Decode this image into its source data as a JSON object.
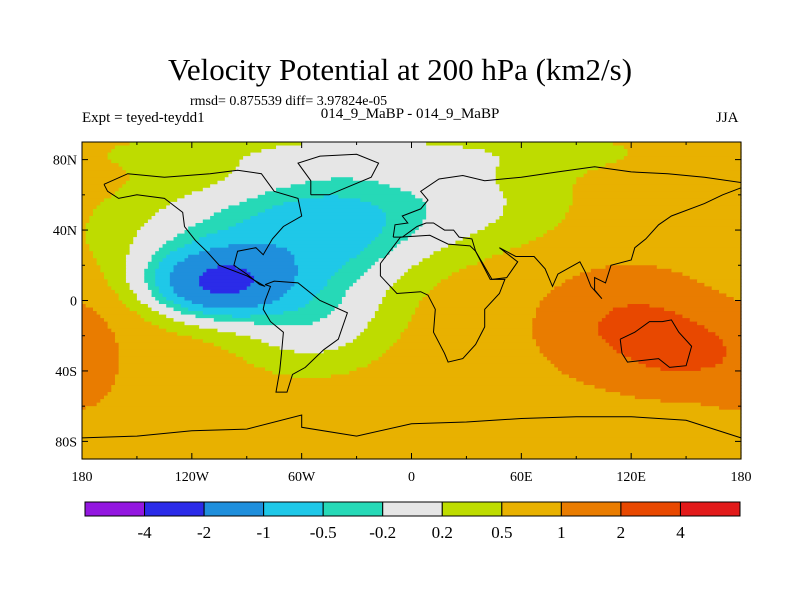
{
  "chart_data": {
    "type": "heatmap",
    "title": "Velocity Potential at 200 hPa (km2/s)",
    "stats_text": "rmsd= 0.875539 diff= 3.97824e-05",
    "left_label": "Expt = teyed-teydd1",
    "center_label": "014_9_MaBP - 014_9_MaBP",
    "right_label": "JJA",
    "xlabel": "",
    "ylabel": "",
    "xlim": [
      -180,
      180
    ],
    "ylim": [
      -90,
      90
    ],
    "x_ticks": [
      {
        "value": -180,
        "label": "180"
      },
      {
        "value": -120,
        "label": "120W"
      },
      {
        "value": -60,
        "label": "60W"
      },
      {
        "value": 0,
        "label": "0"
      },
      {
        "value": 60,
        "label": "60E"
      },
      {
        "value": 120,
        "label": "120E"
      },
      {
        "value": 180,
        "label": "180"
      }
    ],
    "y_ticks": [
      {
        "value": 80,
        "label": "80N"
      },
      {
        "value": 40,
        "label": "40N"
      },
      {
        "value": 0,
        "label": "0"
      },
      {
        "value": -40,
        "label": "40S"
      },
      {
        "value": -80,
        "label": "80S"
      }
    ],
    "colorbar": {
      "levels": [
        "-4",
        "-2",
        "-1",
        "-0.5",
        "-0.2",
        "0.2",
        "0.5",
        "1",
        "2",
        "4"
      ],
      "colors": [
        "#9317e0",
        "#2b2be8",
        "#1f8fdc",
        "#1fc8e8",
        "#26d9b7",
        "#e6e6e6",
        "#bedc00",
        "#e8b100",
        "#e97c00",
        "#e84800",
        "#e21a1a"
      ]
    },
    "field": {
      "units": "km2/s",
      "background": 0.7,
      "centers": [
        {
          "lon": -105,
          "lat": 10,
          "amplitude": -2.5,
          "width_lon": 25,
          "width_lat": 13
        },
        {
          "lon": -95,
          "lat": 38,
          "amplitude": -0.8,
          "width_lon": 50,
          "width_lat": 22
        },
        {
          "lon": -45,
          "lat": 40,
          "amplitude": -0.9,
          "width_lon": 35,
          "width_lat": 25
        },
        {
          "lon": -55,
          "lat": -12,
          "amplitude": -0.7,
          "width_lon": 30,
          "width_lat": 20
        },
        {
          "lon": 20,
          "lat": 55,
          "amplitude": -0.6,
          "width_lon": 45,
          "width_lat": 20
        },
        {
          "lon": -20,
          "lat": 85,
          "amplitude": -0.35,
          "width_lon": 120,
          "width_lat": 10
        },
        {
          "lon": 120,
          "lat": -15,
          "amplitude": 1.5,
          "width_lon": 30,
          "width_lat": 20
        },
        {
          "lon": 150,
          "lat": -30,
          "amplitude": 1.0,
          "width_lon": 20,
          "width_lat": 15
        },
        {
          "lon": -180,
          "lat": -35,
          "amplitude": 0.6,
          "width_lon": 15,
          "width_lat": 20
        }
      ]
    },
    "coastlines": [
      {
        "name": "north-america",
        "points": [
          [
            -168,
            66
          ],
          [
            -155,
            72
          ],
          [
            -135,
            70
          ],
          [
            -110,
            72
          ],
          [
            -95,
            74
          ],
          [
            -82,
            72
          ],
          [
            -75,
            62
          ],
          [
            -62,
            58
          ],
          [
            -60,
            48
          ],
          [
            -70,
            42
          ],
          [
            -76,
            35
          ],
          [
            -81,
            26
          ],
          [
            -85,
            30
          ],
          [
            -95,
            28
          ],
          [
            -97,
            20
          ],
          [
            -90,
            15
          ],
          [
            -83,
            9
          ],
          [
            -80,
            8
          ],
          [
            -90,
            14
          ],
          [
            -105,
            20
          ],
          [
            -112,
            28
          ],
          [
            -118,
            34
          ],
          [
            -124,
            42
          ],
          [
            -125,
            50
          ],
          [
            -135,
            58
          ],
          [
            -150,
            60
          ],
          [
            -160,
            58
          ],
          [
            -166,
            62
          ],
          [
            -168,
            66
          ]
        ]
      },
      {
        "name": "greenland",
        "points": [
          [
            -55,
            60
          ],
          [
            -45,
            60
          ],
          [
            -22,
            70
          ],
          [
            -18,
            78
          ],
          [
            -30,
            83
          ],
          [
            -50,
            82
          ],
          [
            -62,
            78
          ],
          [
            -55,
            68
          ],
          [
            -55,
            60
          ]
        ]
      },
      {
        "name": "south-america",
        "points": [
          [
            -80,
            9
          ],
          [
            -75,
            11
          ],
          [
            -62,
            10
          ],
          [
            -50,
            0
          ],
          [
            -35,
            -7
          ],
          [
            -40,
            -22
          ],
          [
            -48,
            -28
          ],
          [
            -58,
            -38
          ],
          [
            -65,
            -42
          ],
          [
            -68,
            -52
          ],
          [
            -74,
            -52
          ],
          [
            -72,
            -40
          ],
          [
            -71,
            -30
          ],
          [
            -70,
            -18
          ],
          [
            -77,
            -12
          ],
          [
            -81,
            -5
          ],
          [
            -80,
            0
          ],
          [
            -77,
            8
          ],
          [
            -80,
            9
          ]
        ]
      },
      {
        "name": "eurasia",
        "points": [
          [
            -10,
            36
          ],
          [
            -9,
            43
          ],
          [
            -2,
            44
          ],
          [
            -5,
            48
          ],
          [
            5,
            52
          ],
          [
            9,
            57
          ],
          [
            5,
            62
          ],
          [
            15,
            69
          ],
          [
            28,
            71
          ],
          [
            40,
            68
          ],
          [
            60,
            70
          ],
          [
            80,
            73
          ],
          [
            100,
            76
          ],
          [
            120,
            73
          ],
          [
            140,
            72
          ],
          [
            160,
            70
          ],
          [
            180,
            67
          ],
          [
            180,
            64
          ],
          [
            170,
            60
          ],
          [
            160,
            55
          ],
          [
            142,
            48
          ],
          [
            135,
            43
          ],
          [
            128,
            35
          ],
          [
            122,
            30
          ],
          [
            120,
            23
          ],
          [
            109,
            20
          ],
          [
            106,
            10
          ],
          [
            100,
            13
          ],
          [
            100,
            6
          ],
          [
            104,
            1
          ],
          [
            98,
            8
          ],
          [
            95,
            16
          ],
          [
            92,
            22
          ],
          [
            80,
            15
          ],
          [
            77,
            8
          ],
          [
            73,
            18
          ],
          [
            67,
            25
          ],
          [
            57,
            25
          ],
          [
            48,
            30
          ],
          [
            58,
            22
          ],
          [
            52,
            13
          ],
          [
            44,
            12
          ],
          [
            35,
            28
          ],
          [
            33,
            35
          ],
          [
            26,
            36
          ],
          [
            23,
            40
          ],
          [
            18,
            40
          ],
          [
            12,
            44
          ],
          [
            8,
            44
          ],
          [
            3,
            42
          ],
          [
            -5,
            36
          ],
          [
            -10,
            36
          ]
        ]
      },
      {
        "name": "africa",
        "points": [
          [
            -17,
            21
          ],
          [
            -6,
            36
          ],
          [
            10,
            37
          ],
          [
            20,
            32
          ],
          [
            32,
            31
          ],
          [
            35,
            28
          ],
          [
            43,
            12
          ],
          [
            51,
            12
          ],
          [
            48,
            4
          ],
          [
            40,
            -5
          ],
          [
            40,
            -15
          ],
          [
            35,
            -25
          ],
          [
            28,
            -33
          ],
          [
            20,
            -35
          ],
          [
            18,
            -30
          ],
          [
            12,
            -18
          ],
          [
            13,
            -5
          ],
          [
            9,
            3
          ],
          [
            5,
            5
          ],
          [
            -8,
            4
          ],
          [
            -17,
            14
          ],
          [
            -17,
            21
          ]
        ]
      },
      {
        "name": "australia",
        "points": [
          [
            114,
            -22
          ],
          [
            122,
            -18
          ],
          [
            130,
            -12
          ],
          [
            137,
            -12
          ],
          [
            142,
            -11
          ],
          [
            146,
            -18
          ],
          [
            153,
            -26
          ],
          [
            150,
            -37
          ],
          [
            141,
            -38
          ],
          [
            135,
            -33
          ],
          [
            118,
            -35
          ],
          [
            115,
            -30
          ],
          [
            114,
            -22
          ]
        ]
      },
      {
        "name": "antarctica",
        "points": [
          [
            -180,
            -78
          ],
          [
            -150,
            -77
          ],
          [
            -120,
            -74
          ],
          [
            -90,
            -73
          ],
          [
            -60,
            -65
          ],
          [
            -60,
            -72
          ],
          [
            -30,
            -77
          ],
          [
            0,
            -70
          ],
          [
            30,
            -69
          ],
          [
            60,
            -67
          ],
          [
            90,
            -66
          ],
          [
            120,
            -66
          ],
          [
            150,
            -68
          ],
          [
            180,
            -78
          ]
        ]
      }
    ]
  }
}
